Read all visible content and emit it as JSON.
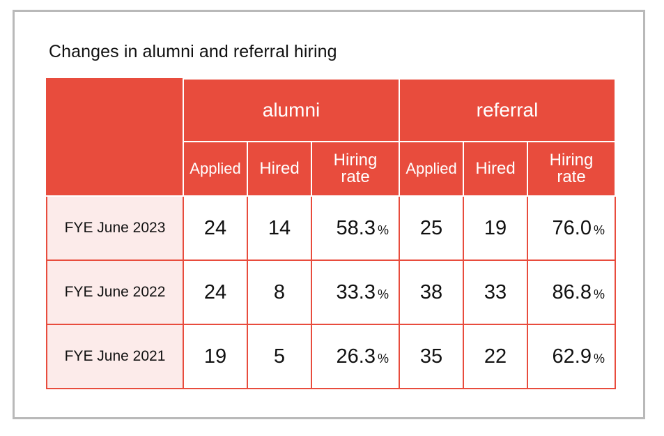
{
  "title": "Changes in alumni and referral hiring",
  "groups": {
    "alumni": "alumni",
    "referral": "referral"
  },
  "subheaders": {
    "applied": "Applied",
    "hired": "Hired",
    "rate_line1": "Hiring",
    "rate_line2": "rate"
  },
  "percent_sign": "%",
  "rows": [
    {
      "label": "FYE June 2023",
      "alumni": {
        "applied": "24",
        "hired": "14",
        "rate": "58.3"
      },
      "referral": {
        "applied": "25",
        "hired": "19",
        "rate": "76.0"
      }
    },
    {
      "label": "FYE June 2022",
      "alumni": {
        "applied": "24",
        "hired": "8",
        "rate": "33.3"
      },
      "referral": {
        "applied": "38",
        "hired": "33",
        "rate": "86.8"
      }
    },
    {
      "label": "FYE June 2021",
      "alumni": {
        "applied": "19",
        "hired": "5",
        "rate": "26.3"
      },
      "referral": {
        "applied": "35",
        "hired": "22",
        "rate": "62.9"
      }
    }
  ],
  "colors": {
    "header_red": "#e84c3d",
    "label_bg": "#fcebea",
    "frame_border": "#b9b9b9"
  }
}
